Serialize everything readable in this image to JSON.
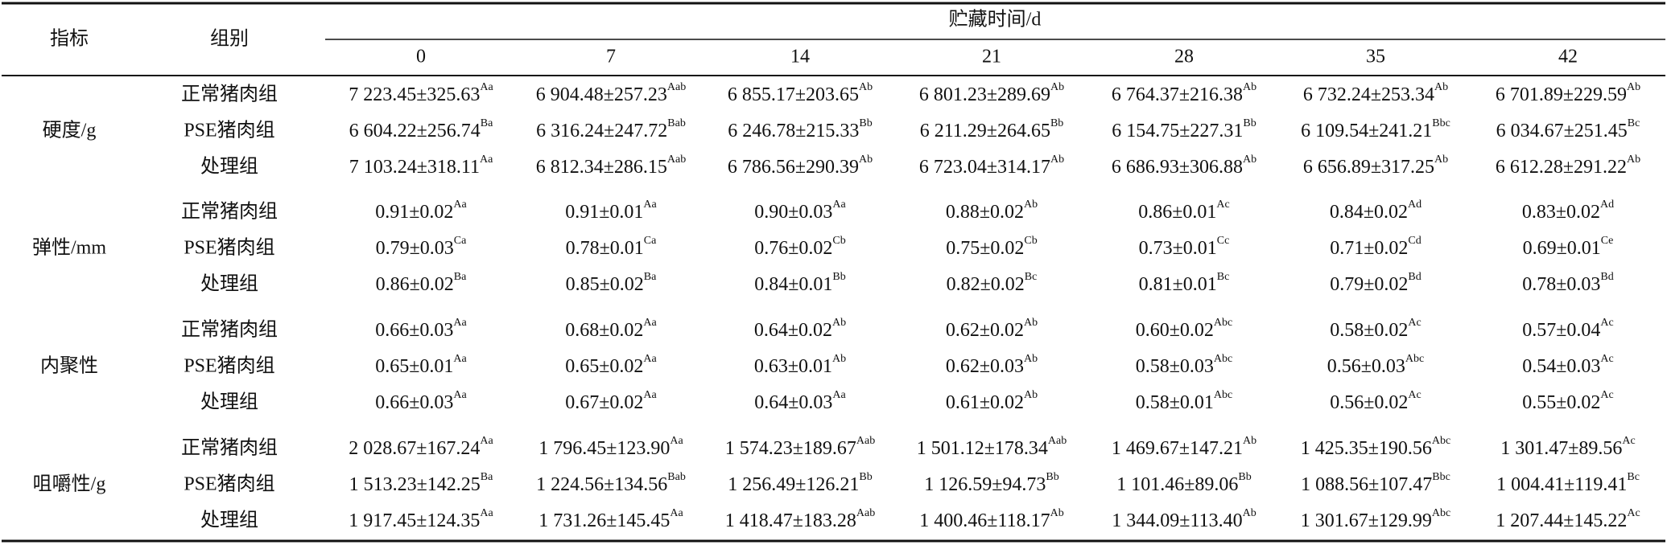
{
  "header": {
    "indicator": "指标",
    "group": "组别",
    "time": "贮藏时间/d",
    "days": [
      0,
      7,
      14,
      21,
      28,
      35,
      42
    ]
  },
  "table": {
    "sections": [
      {
        "label": "硬度/g",
        "rows": [
          {
            "group": "正常猪肉组",
            "cells": [
              [
                "7 223.45±325.63",
                "Aa"
              ],
              [
                "6 904.48±257.23",
                "Aab"
              ],
              [
                "6 855.17±203.65",
                "Ab"
              ],
              [
                "6 801.23±289.69",
                "Ab"
              ],
              [
                "6 764.37±216.38",
                "Ab"
              ],
              [
                "6 732.24±253.34",
                "Ab"
              ],
              [
                "6 701.89±229.59",
                "Ab"
              ]
            ]
          },
          {
            "group": "PSE猪肉组",
            "cells": [
              [
                "6 604.22±256.74",
                "Ba"
              ],
              [
                "6 316.24±247.72",
                "Bab"
              ],
              [
                "6 246.78±215.33",
                "Bb"
              ],
              [
                "6 211.29±264.65",
                "Bb"
              ],
              [
                "6 154.75±227.31",
                "Bb"
              ],
              [
                "6 109.54±241.21",
                "Bbc"
              ],
              [
                "6 034.67±251.45",
                "Bc"
              ]
            ]
          },
          {
            "group": "处理组",
            "cells": [
              [
                "7 103.24±318.11",
                "Aa"
              ],
              [
                "6 812.34±286.15",
                "Aab"
              ],
              [
                "6 786.56±290.39",
                "Ab"
              ],
              [
                "6 723.04±314.17",
                "Ab"
              ],
              [
                "6 686.93±306.88",
                "Ab"
              ],
              [
                "6 656.89±317.25",
                "Ab"
              ],
              [
                "6 612.28±291.22",
                "Ab"
              ]
            ]
          }
        ]
      },
      {
        "label": "弹性/mm",
        "rows": [
          {
            "group": "正常猪肉组",
            "cells": [
              [
                "0.91±0.02",
                "Aa"
              ],
              [
                "0.91±0.01",
                "Aa"
              ],
              [
                "0.90±0.03",
                "Aa"
              ],
              [
                "0.88±0.02",
                "Ab"
              ],
              [
                "0.86±0.01",
                "Ac"
              ],
              [
                "0.84±0.02",
                "Ad"
              ],
              [
                "0.83±0.02",
                "Ad"
              ]
            ]
          },
          {
            "group": "PSE猪肉组",
            "cells": [
              [
                "0.79±0.03",
                "Ca"
              ],
              [
                "0.78±0.01",
                "Ca"
              ],
              [
                "0.76±0.02",
                "Cb"
              ],
              [
                "0.75±0.02",
                "Cb"
              ],
              [
                "0.73±0.01",
                "Cc"
              ],
              [
                "0.71±0.02",
                "Cd"
              ],
              [
                "0.69±0.01",
                "Ce"
              ]
            ]
          },
          {
            "group": "处理组",
            "cells": [
              [
                "0.86±0.02",
                "Ba"
              ],
              [
                "0.85±0.02",
                "Ba"
              ],
              [
                "0.84±0.01",
                "Bb"
              ],
              [
                "0.82±0.02",
                "Bc"
              ],
              [
                "0.81±0.01",
                "Bc"
              ],
              [
                "0.79±0.02",
                "Bd"
              ],
              [
                "0.78±0.03",
                "Bd"
              ]
            ]
          }
        ]
      },
      {
        "label": "内聚性",
        "rows": [
          {
            "group": "正常猪肉组",
            "cells": [
              [
                "0.66±0.03",
                "Aa"
              ],
              [
                "0.68±0.02",
                "Aa"
              ],
              [
                "0.64±0.02",
                "Ab"
              ],
              [
                "0.62±0.02",
                "Ab"
              ],
              [
                "0.60±0.02",
                "Abc"
              ],
              [
                "0.58±0.02",
                "Ac"
              ],
              [
                "0.57±0.04",
                "Ac"
              ]
            ]
          },
          {
            "group": "PSE猪肉组",
            "cells": [
              [
                "0.65±0.01",
                "Aa"
              ],
              [
                "0.65±0.02",
                "Aa"
              ],
              [
                "0.63±0.01",
                "Ab"
              ],
              [
                "0.62±0.03",
                "Ab"
              ],
              [
                "0.58±0.03",
                "Abc"
              ],
              [
                "0.56±0.03",
                "Abc"
              ],
              [
                "0.54±0.03",
                "Ac"
              ]
            ]
          },
          {
            "group": "处理组",
            "cells": [
              [
                "0.66±0.03",
                "Aa"
              ],
              [
                "0.67±0.02",
                "Aa"
              ],
              [
                "0.64±0.03",
                "Aa"
              ],
              [
                "0.61±0.02",
                "Ab"
              ],
              [
                "0.58±0.01",
                "Abc"
              ],
              [
                "0.56±0.02",
                "Ac"
              ],
              [
                "0.55±0.02",
                "Ac"
              ]
            ]
          }
        ]
      },
      {
        "label": "咀嚼性/g",
        "rows": [
          {
            "group": "正常猪肉组",
            "cells": [
              [
                "2 028.67±167.24",
                "Aa"
              ],
              [
                "1 796.45±123.90",
                "Aa"
              ],
              [
                "1 574.23±189.67",
                "Aab"
              ],
              [
                "1 501.12±178.34",
                "Aab"
              ],
              [
                "1 469.67±147.21",
                "Ab"
              ],
              [
                "1 425.35±190.56",
                "Abc"
              ],
              [
                "1 301.47±89.56",
                "Ac"
              ]
            ]
          },
          {
            "group": "PSE猪肉组",
            "cells": [
              [
                "1 513.23±142.25",
                "Ba"
              ],
              [
                "1 224.56±134.56",
                "Bab"
              ],
              [
                "1 256.49±126.21",
                "Bb"
              ],
              [
                "1 126.59±94.73",
                "Bb"
              ],
              [
                "1 101.46±89.06",
                "Bb"
              ],
              [
                "1 088.56±107.47",
                "Bbc"
              ],
              [
                "1 004.41±119.41",
                "Bc"
              ]
            ]
          },
          {
            "group": "处理组",
            "cells": [
              [
                "1 917.45±124.35",
                "Aa"
              ],
              [
                "1 731.26±145.45",
                "Aa"
              ],
              [
                "1 418.47±183.28",
                "Aab"
              ],
              [
                "1 400.46±118.17",
                "Ab"
              ],
              [
                "1 344.09±113.40",
                "Ab"
              ],
              [
                "1 301.67±129.99",
                "Abc"
              ],
              [
                "1 207.44±145.22",
                "Ac"
              ]
            ]
          }
        ]
      }
    ]
  }
}
